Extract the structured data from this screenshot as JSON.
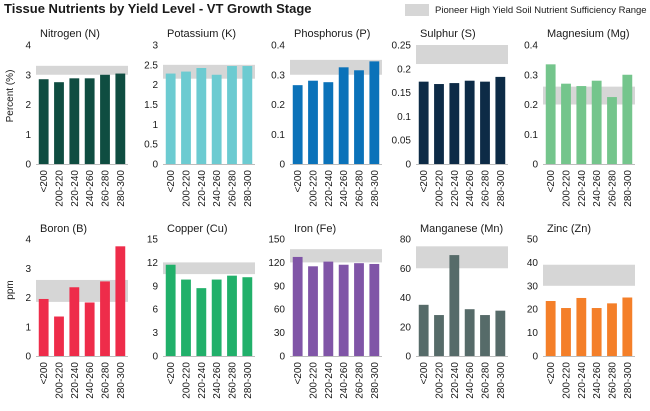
{
  "title": "Tissue Nutrients by Yield Level - VT Growth Stage",
  "legend": {
    "label": "Pioneer High Yield Soil Nutrient Sufficiency Range",
    "color": "#d6d6d6"
  },
  "row_ylabels": [
    "Percent (%)",
    "ppm"
  ],
  "categories": [
    "<200",
    "200-220",
    "220-240",
    "240-260",
    "260-280",
    "280-300"
  ],
  "chart_data": [
    {
      "type": "bar",
      "title": "Nitrogen (N)",
      "ylim": [
        0,
        4
      ],
      "ticks": [
        "0",
        "1",
        "2",
        "3",
        "4"
      ],
      "color": "#0f4d41",
      "band": [
        3.0,
        3.3
      ],
      "values": [
        2.85,
        2.75,
        2.88,
        2.88,
        3.0,
        3.04
      ]
    },
    {
      "type": "bar",
      "title": "Potassium (K)",
      "ylim": [
        0,
        3
      ],
      "ticks": [
        "0",
        "0.5",
        "1",
        "1.5",
        "2",
        "2.5",
        "3"
      ],
      "color": "#6ccbd1",
      "band": [
        2.15,
        2.5
      ],
      "values": [
        2.28,
        2.33,
        2.42,
        2.25,
        2.47,
        2.47
      ]
    },
    {
      "type": "bar",
      "title": "Phosphorus (P)",
      "ylim": [
        0,
        0.4
      ],
      "ticks": [
        "0",
        "0.1",
        "0.2",
        "0.3",
        "0.4"
      ],
      "color": "#0b72b9",
      "band": [
        0.3,
        0.35
      ],
      "values": [
        0.265,
        0.28,
        0.275,
        0.325,
        0.315,
        0.345
      ]
    },
    {
      "type": "bar",
      "title": "Sulphur (S)",
      "ylim": [
        0,
        0.25
      ],
      "ticks": [
        "0",
        "0.05",
        "0.1",
        "0.15",
        "0.2",
        "0.25"
      ],
      "color": "#0d2b46",
      "band": [
        0.21,
        0.25
      ],
      "values": [
        0.173,
        0.168,
        0.17,
        0.175,
        0.173,
        0.183
      ]
    },
    {
      "type": "bar",
      "title": "Magnesium (Mg)",
      "ylim": [
        0,
        0.4
      ],
      "ticks": [
        "0",
        "0.1",
        "0.2",
        "0.3",
        "0.4"
      ],
      "color": "#74c58c",
      "band": [
        0.2,
        0.26
      ],
      "values": [
        0.335,
        0.27,
        0.262,
        0.28,
        0.225,
        0.3
      ]
    },
    {
      "type": "bar",
      "title": "Boron (B)",
      "ylim": [
        0,
        4
      ],
      "ticks": [
        "0",
        "1",
        "2",
        "3",
        "4"
      ],
      "color": "#ee2c4a",
      "band": [
        1.85,
        2.6
      ],
      "values": [
        1.95,
        1.35,
        2.35,
        1.83,
        2.55,
        3.75
      ]
    },
    {
      "type": "bar",
      "title": "Copper (Cu)",
      "ylim": [
        0,
        15
      ],
      "ticks": [
        "0",
        "3",
        "6",
        "9",
        "12",
        "15"
      ],
      "color": "#21b06a",
      "band": [
        10.5,
        12.0
      ],
      "values": [
        11.7,
        9.8,
        8.7,
        9.8,
        10.3,
        10.1
      ]
    },
    {
      "type": "bar",
      "title": "Iron (Fe)",
      "ylim": [
        0,
        150
      ],
      "ticks": [
        "0",
        "30",
        "60",
        "90",
        "120",
        "150"
      ],
      "color": "#8055a7",
      "band": [
        120,
        137
      ],
      "values": [
        127,
        115,
        121,
        117,
        119,
        118
      ]
    },
    {
      "type": "bar",
      "title": "Manganese (Mn)",
      "ylim": [
        0,
        80
      ],
      "ticks": [
        "0",
        "20",
        "40",
        "60",
        "80"
      ],
      "color": "#566b69",
      "band": [
        60,
        75
      ],
      "values": [
        35,
        28,
        69,
        32,
        28,
        31
      ]
    },
    {
      "type": "bar",
      "title": "Zinc (Zn)",
      "ylim": [
        0,
        50
      ],
      "ticks": [
        "0",
        "10",
        "20",
        "30",
        "40",
        "50"
      ],
      "color": "#f47f29",
      "band": [
        30,
        39
      ],
      "values": [
        23.5,
        20.5,
        24.8,
        20.5,
        22.5,
        25.0
      ]
    }
  ]
}
